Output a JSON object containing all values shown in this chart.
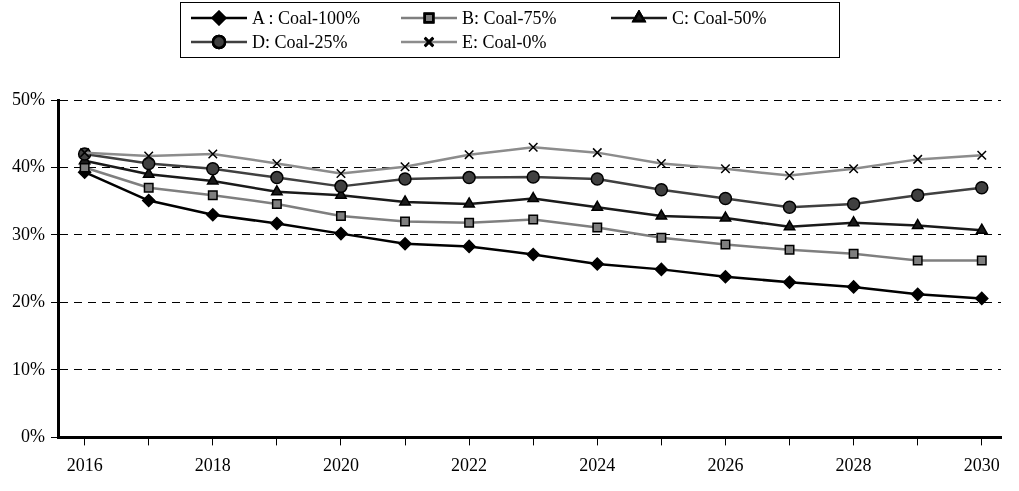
{
  "chart_data": {
    "type": "line",
    "x": [
      2016,
      2017,
      2018,
      2019,
      2020,
      2021,
      2022,
      2023,
      2024,
      2025,
      2026,
      2027,
      2028,
      2029,
      2030
    ],
    "series": [
      {
        "name": "A : Coal-100%",
        "color": "#000000",
        "marker": "diamond",
        "values": [
          39.3,
          35.1,
          33.0,
          31.7,
          30.2,
          28.7,
          28.3,
          27.1,
          25.7,
          24.9,
          23.8,
          23.0,
          22.3,
          21.2,
          20.6
        ]
      },
      {
        "name": "B: Coal-75%",
        "color": "#7f7f7f",
        "marker": "square",
        "values": [
          40.0,
          37.0,
          35.9,
          34.6,
          32.8,
          32.0,
          31.8,
          32.3,
          31.1,
          29.6,
          28.6,
          27.8,
          27.2,
          26.2,
          26.2
        ]
      },
      {
        "name": "C: Coal-50%",
        "color": "#1a1a1a",
        "marker": "triangle",
        "values": [
          41.0,
          39.0,
          38.0,
          36.4,
          35.9,
          34.9,
          34.6,
          35.4,
          34.1,
          32.8,
          32.5,
          31.2,
          31.8,
          31.4,
          30.7
        ]
      },
      {
        "name": "D: Coal-25%",
        "color": "#404040",
        "marker": "circle",
        "values": [
          42.0,
          40.6,
          39.8,
          38.5,
          37.2,
          38.3,
          38.5,
          38.6,
          38.3,
          36.7,
          35.4,
          34.1,
          34.6,
          35.9,
          37.0
        ]
      },
      {
        "name": "E: Coal-0%",
        "color": "#8c8c8c",
        "marker": "cross",
        "values": [
          42.2,
          41.7,
          42.0,
          40.6,
          39.1,
          40.1,
          41.9,
          43.0,
          42.2,
          40.6,
          39.8,
          38.8,
          39.8,
          41.2,
          41.8
        ]
      }
    ],
    "xlim": [
      2015.6,
      2030.3
    ],
    "xticks": [
      2016,
      {
        "value": 2017,
        "label": null
      },
      2018,
      {
        "value": 2019,
        "label": null
      },
      2020,
      {
        "value": 2021,
        "label": null
      },
      2022,
      {
        "value": 2023,
        "label": null
      },
      2024,
      {
        "value": 2025,
        "label": null
      },
      2026,
      {
        "value": 2027,
        "label": null
      },
      2028,
      {
        "value": 2029,
        "label": null
      },
      2030
    ],
    "ylim": [
      0,
      50
    ],
    "yticks": [
      {
        "value": 0,
        "label": "0%"
      },
      {
        "value": 10,
        "label": "10%"
      },
      {
        "value": 20,
        "label": "20%"
      },
      {
        "value": 30,
        "label": "30%"
      },
      {
        "value": 40,
        "label": "40%"
      },
      {
        "value": 50,
        "label": "50%"
      }
    ],
    "grid": "y",
    "legend": "top",
    "line_style": "solid"
  }
}
